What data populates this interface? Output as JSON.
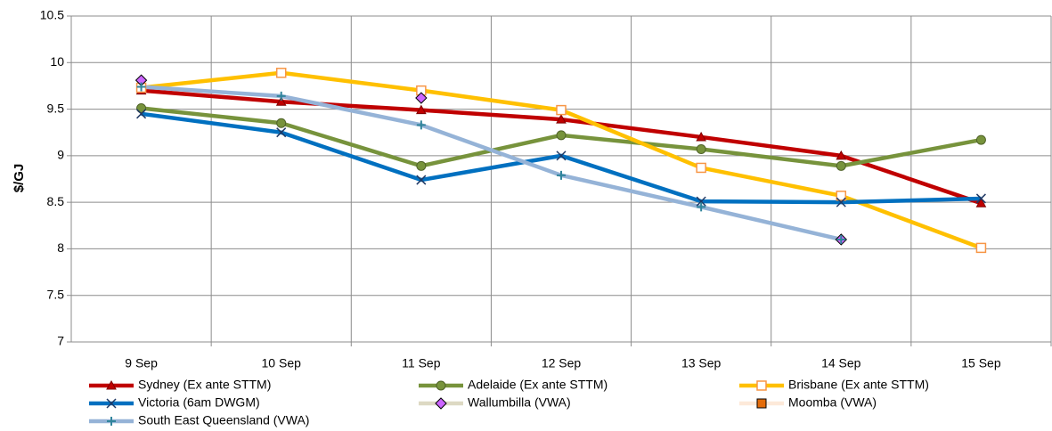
{
  "chart_data": {
    "type": "line",
    "y_label": "$/GJ",
    "categories": [
      "9 Sep",
      "10 Sep",
      "11 Sep",
      "12 Sep",
      "13 Sep",
      "14 Sep",
      "15 Sep"
    ],
    "ylim": [
      7,
      10.5
    ],
    "yticks": [
      7,
      7.5,
      8,
      8.5,
      9,
      9.5,
      10,
      10.5
    ],
    "grid": true,
    "series": [
      {
        "name": "Sydney (Ex ante STTM)",
        "color": "#c00000",
        "marker": "triangle",
        "marker_color": "#c00000",
        "values": [
          9.7,
          9.58,
          9.49,
          9.39,
          9.2,
          9.0,
          8.49
        ]
      },
      {
        "name": "Adelaide (Ex ante STTM)",
        "color": "#77933c",
        "marker": "circle",
        "marker_color": "#77933c",
        "values": [
          9.51,
          9.35,
          8.89,
          9.22,
          9.07,
          8.89,
          9.17
        ]
      },
      {
        "name": "Brisbane (Ex ante STTM)",
        "color": "#ffc000",
        "marker": "open-square",
        "marker_color": "#f79646",
        "values": [
          9.73,
          9.89,
          9.7,
          9.49,
          8.87,
          8.57,
          8.01
        ]
      },
      {
        "name": "Victoria (6am DWGM)",
        "color": "#0070c0",
        "marker": "x",
        "marker_color": "#1f3864",
        "values": [
          9.45,
          9.25,
          8.74,
          9.0,
          8.51,
          8.5,
          8.54
        ]
      },
      {
        "name": "Wallumbilla (VWA)",
        "color": "#ddd9c3",
        "marker": "diamond",
        "marker_color": "#cc66ff",
        "values": [
          9.81,
          null,
          9.62,
          null,
          null,
          8.1,
          null
        ]
      },
      {
        "name": "Moomba (VWA)",
        "color": "#fde9d9",
        "marker": "square",
        "marker_color": "#e46c0a",
        "values": [
          null,
          null,
          null,
          null,
          null,
          null,
          null
        ]
      },
      {
        "name": "South East Queensland (VWA)",
        "color": "#95b3d7",
        "marker": "plus",
        "marker_color": "#31859c",
        "values": [
          9.74,
          9.64,
          9.33,
          8.79,
          8.45,
          8.1,
          null
        ]
      }
    ]
  }
}
